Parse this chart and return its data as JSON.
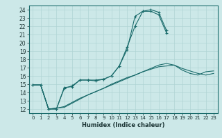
{
  "xlabel": "Humidex (Indice chaleur)",
  "background_color": "#cce8e8",
  "grid_color": "#b0d4d4",
  "line_color": "#1a6b6b",
  "xlim": [
    -0.5,
    23.5
  ],
  "ylim": [
    11.5,
    24.5
  ],
  "yticks": [
    12,
    13,
    14,
    15,
    16,
    17,
    18,
    19,
    20,
    21,
    22,
    23,
    24
  ],
  "xticks": [
    0,
    1,
    2,
    3,
    4,
    5,
    6,
    7,
    8,
    9,
    10,
    11,
    12,
    13,
    14,
    15,
    16,
    17,
    18,
    19,
    20,
    21,
    22,
    23
  ],
  "series": [
    {
      "x": [
        0,
        1,
        2,
        3,
        4,
        5,
        6,
        7,
        8,
        9,
        10,
        11,
        12,
        13,
        14,
        15,
        16,
        17
      ],
      "y": [
        14.9,
        14.9,
        12.0,
        12.0,
        14.6,
        14.7,
        15.5,
        15.5,
        15.4,
        15.6,
        16.0,
        17.2,
        19.2,
        23.2,
        23.8,
        23.8,
        23.4,
        21.2
      ],
      "marker": "+"
    },
    {
      "x": [
        0,
        1,
        2,
        3,
        4,
        5,
        6,
        7,
        8,
        9,
        10,
        11,
        12,
        13,
        14,
        15,
        16,
        17,
        18,
        19,
        20,
        21,
        22,
        23
      ],
      "y": [
        14.9,
        14.9,
        12.0,
        12.0,
        14.5,
        14.8,
        15.5,
        15.5,
        15.5,
        15.6,
        16.0,
        17.2,
        19.5,
        22.0,
        23.8,
        24.0,
        23.7,
        21.5,
        null,
        null,
        null,
        null,
        null,
        null
      ],
      "marker": "+"
    },
    {
      "x": [
        0,
        1,
        2,
        3,
        4,
        5,
        6,
        7,
        8,
        9,
        10,
        11,
        12,
        13,
        14,
        15,
        16,
        17,
        18,
        19,
        20,
        21,
        22,
        23
      ],
      "y": [
        14.9,
        14.9,
        12.0,
        12.1,
        12.2,
        12.7,
        13.2,
        13.7,
        14.1,
        14.5,
        14.9,
        15.3,
        15.7,
        16.1,
        16.5,
        16.9,
        17.3,
        17.5,
        17.3,
        16.7,
        16.3,
        16.1,
        16.5,
        16.6
      ],
      "marker": null
    },
    {
      "x": [
        0,
        1,
        2,
        3,
        4,
        5,
        6,
        7,
        8,
        9,
        10,
        11,
        12,
        13,
        14,
        15,
        16,
        17,
        18,
        19,
        20,
        21,
        22,
        23
      ],
      "y": [
        14.9,
        14.9,
        12.0,
        12.1,
        12.3,
        12.8,
        13.3,
        13.7,
        14.1,
        14.5,
        15.0,
        15.4,
        15.8,
        16.1,
        16.5,
        16.8,
        17.1,
        17.2,
        17.3,
        16.9,
        16.6,
        16.3,
        16.1,
        16.3
      ],
      "marker": null
    }
  ]
}
